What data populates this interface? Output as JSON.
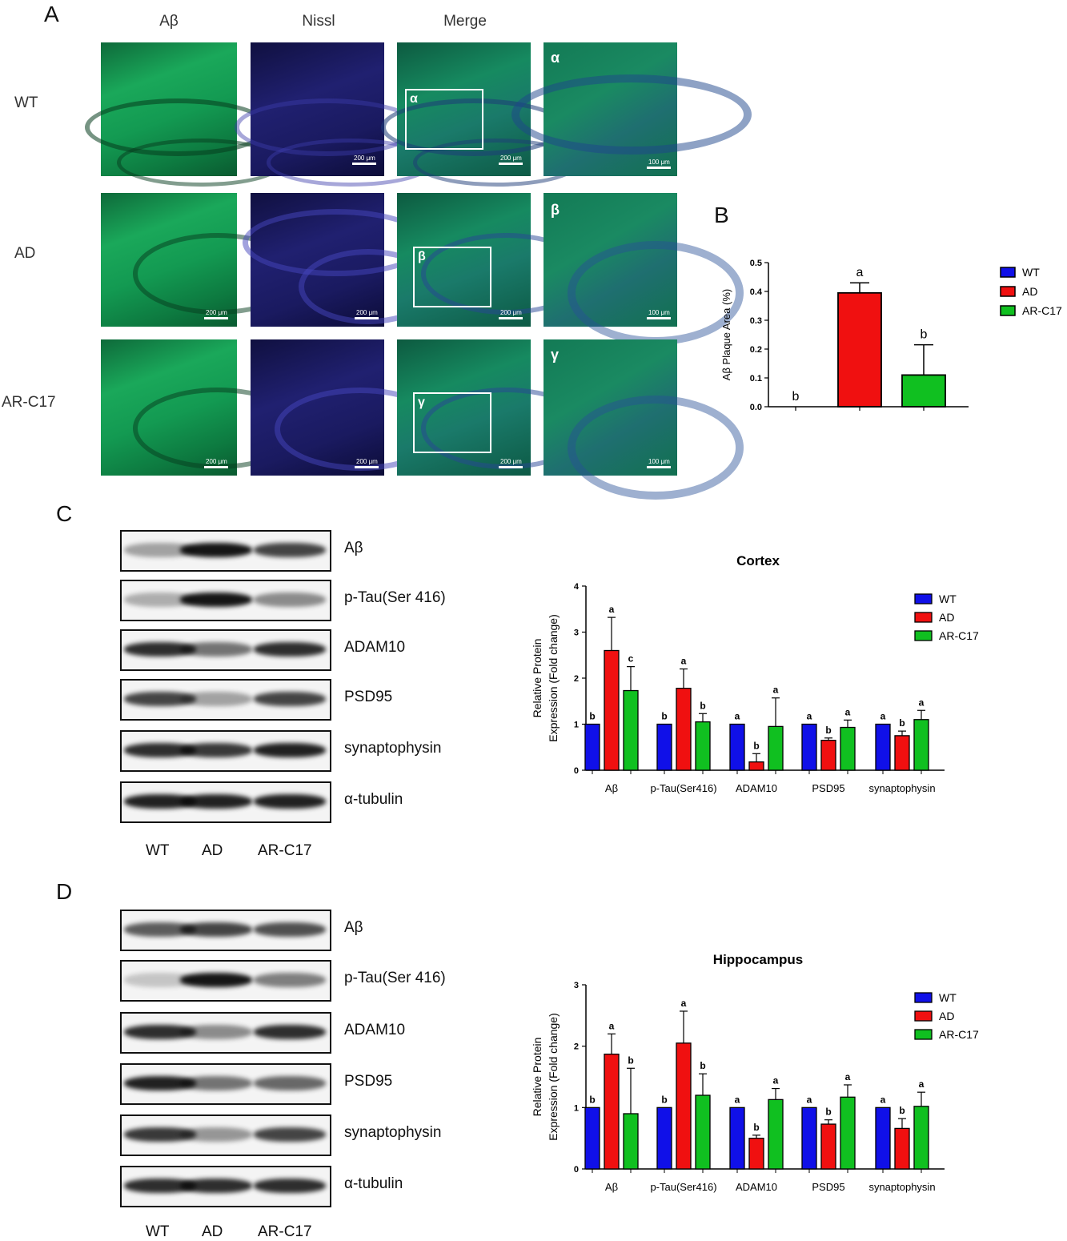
{
  "panels": {
    "a": "A",
    "b": "B",
    "c": "C",
    "d": "D"
  },
  "micrographs": {
    "columns": [
      "Aβ",
      "Nissl",
      "Merge"
    ],
    "rows": [
      "WT",
      "AD",
      "AR-C17"
    ],
    "scale_main": "200 μm",
    "scale_zoom": "100 μm",
    "roi_labels": [
      "α",
      "β",
      "γ"
    ]
  },
  "blots": {
    "proteins": [
      "Aβ",
      "p-Tau(Ser 416)",
      "ADAM10",
      "PSD95",
      "synaptophysin",
      "α-tubulin"
    ],
    "lanes": [
      "WT",
      "AD",
      "AR-C17"
    ],
    "cortex_intensity": [
      [
        0.35,
        0.95,
        0.75
      ],
      [
        0.3,
        0.95,
        0.45
      ],
      [
        0.85,
        0.55,
        0.85
      ],
      [
        0.75,
        0.35,
        0.75
      ],
      [
        0.85,
        0.8,
        0.9
      ],
      [
        0.9,
        0.9,
        0.9
      ]
    ],
    "hippocampus_intensity": [
      [
        0.65,
        0.75,
        0.7
      ],
      [
        0.2,
        0.95,
        0.5
      ],
      [
        0.85,
        0.45,
        0.85
      ],
      [
        0.9,
        0.55,
        0.6
      ],
      [
        0.8,
        0.4,
        0.75
      ],
      [
        0.85,
        0.85,
        0.85
      ]
    ]
  },
  "colors": {
    "WT": "#1010e8",
    "AD": "#f01010",
    "AR-C17": "#10c020"
  },
  "chart_data": [
    {
      "id": "plaque",
      "type": "bar",
      "title": "",
      "xlabel": "",
      "ylabel": "Aβ Plaque Area (%)",
      "ylim": [
        0,
        0.5
      ],
      "yticks": [
        "0.0",
        "0.1",
        "0.2",
        "0.3",
        "0.4",
        "0.5"
      ],
      "categories": [
        "WT",
        "AD",
        "AR-C17"
      ],
      "values": [
        0.0,
        0.395,
        0.11
      ],
      "errors": [
        0.0,
        0.035,
        0.105
      ],
      "letters": [
        "b",
        "a",
        "b"
      ],
      "legend": [
        "WT",
        "AD",
        "AR-C17"
      ]
    },
    {
      "id": "cortex",
      "type": "bar",
      "title": "Cortex",
      "xlabel": "",
      "ylabel": "Relative Protein Expression (Fold change)",
      "ylabel_lines": [
        "Relative  Protein",
        "Expression (Fold change)"
      ],
      "ylim": [
        0,
        4
      ],
      "yticks": [
        "0",
        "1",
        "2",
        "3",
        "4"
      ],
      "categories": [
        "Aβ",
        "p-Tau(Ser416)",
        "ADAM10",
        "PSD95",
        "synaptophysin"
      ],
      "series": [
        {
          "name": "WT",
          "values": [
            1.0,
            1.0,
            1.0,
            1.0,
            1.0
          ],
          "errors": [
            0,
            0,
            0,
            0,
            0
          ],
          "letters": [
            "b",
            "b",
            "a",
            "a",
            "a"
          ]
        },
        {
          "name": "AD",
          "values": [
            2.6,
            1.78,
            0.18,
            0.65,
            0.75
          ],
          "errors": [
            0.72,
            0.42,
            0.18,
            0.05,
            0.1
          ],
          "letters": [
            "a",
            "a",
            "b",
            "b",
            "b"
          ]
        },
        {
          "name": "AR-C17",
          "values": [
            1.73,
            1.05,
            0.95,
            0.93,
            1.1
          ],
          "errors": [
            0.52,
            0.18,
            0.62,
            0.16,
            0.2
          ],
          "letters": [
            "c",
            "b",
            "a",
            "a",
            "a"
          ]
        }
      ]
    },
    {
      "id": "hippocampus",
      "type": "bar",
      "title": "Hippocampus",
      "xlabel": "",
      "ylabel": "Relative Protein Expression (Fold change)",
      "ylabel_lines": [
        "Relative  Protein",
        "Expression (Fold change)"
      ],
      "ylim": [
        0,
        3
      ],
      "yticks": [
        "0",
        "1",
        "2",
        "3"
      ],
      "categories": [
        "Aβ",
        "p-Tau(Ser416)",
        "ADAM10",
        "PSD95",
        "synaptophysin"
      ],
      "series": [
        {
          "name": "WT",
          "values": [
            1.0,
            1.0,
            1.0,
            1.0,
            1.0
          ],
          "errors": [
            0,
            0,
            0,
            0,
            0
          ],
          "letters": [
            "b",
            "b",
            "a",
            "a",
            "a"
          ]
        },
        {
          "name": "AD",
          "values": [
            1.87,
            2.05,
            0.5,
            0.73,
            0.66
          ],
          "errors": [
            0.33,
            0.52,
            0.05,
            0.07,
            0.16
          ],
          "letters": [
            "a",
            "a",
            "b",
            "b",
            "b"
          ]
        },
        {
          "name": "AR-C17",
          "values": [
            0.9,
            1.2,
            1.13,
            1.17,
            1.02
          ],
          "errors": [
            0.74,
            0.35,
            0.18,
            0.2,
            0.23
          ],
          "letters": [
            "b",
            "b",
            "a",
            "a",
            "a"
          ]
        }
      ]
    }
  ]
}
